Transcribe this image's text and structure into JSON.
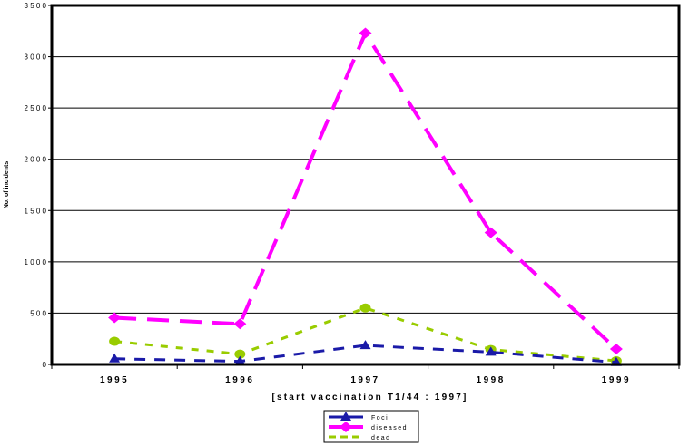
{
  "chart_data": {
    "type": "line",
    "title": "",
    "xlabel": "[start vaccination T1/44 : 1997]",
    "ylabel": "No. of incidents",
    "categories": [
      "1995",
      "1996",
      "1997",
      "1998",
      "1999"
    ],
    "ylim": [
      0,
      3500
    ],
    "yticks": [
      "0",
      "500",
      "1000",
      "1500",
      "2000",
      "2500",
      "3000",
      "3500"
    ],
    "grid": "horizontal",
    "legend_position": "bottom-center",
    "series": [
      {
        "name": "Foci",
        "values": [
          55,
          30,
          185,
          120,
          20
        ],
        "color": "#1a1aa8",
        "marker": "triangle"
      },
      {
        "name": "diseased",
        "values": [
          455,
          395,
          3230,
          1285,
          150
        ],
        "color": "#ff00ff",
        "marker": "diamond"
      },
      {
        "name": "dead",
        "values": [
          225,
          100,
          550,
          145,
          35
        ],
        "color": "#99cc00",
        "marker": "circle"
      }
    ]
  }
}
